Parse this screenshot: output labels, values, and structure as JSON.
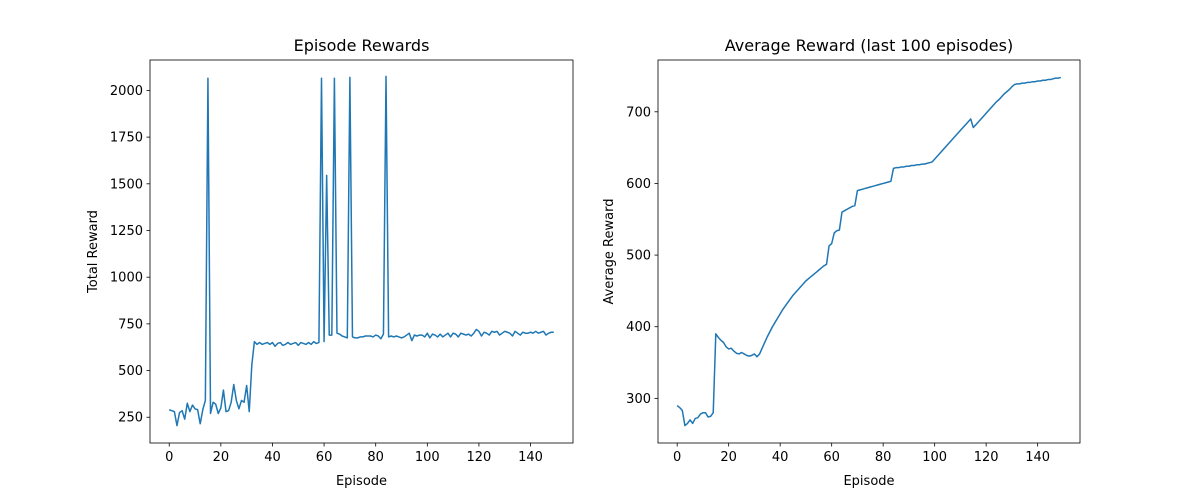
{
  "chart_data": [
    {
      "type": "line",
      "title": "Episode Rewards",
      "x_label": "Episode",
      "y_label": "Total Reward",
      "x": [
        0,
        1,
        2,
        3,
        4,
        5,
        6,
        7,
        8,
        9,
        10,
        11,
        12,
        13,
        14,
        15,
        16,
        17,
        18,
        19,
        20,
        21,
        22,
        23,
        24,
        25,
        26,
        27,
        28,
        29,
        30,
        31,
        32,
        33,
        34,
        35,
        36,
        37,
        38,
        39,
        40,
        41,
        42,
        43,
        44,
        45,
        46,
        47,
        48,
        49,
        50,
        51,
        52,
        53,
        54,
        55,
        56,
        57,
        58,
        59,
        60,
        61,
        62,
        63,
        64,
        65,
        66,
        67,
        68,
        69,
        70,
        71,
        72,
        73,
        74,
        75,
        76,
        77,
        78,
        79,
        80,
        81,
        82,
        83,
        84,
        85,
        86,
        87,
        88,
        89,
        90,
        91,
        92,
        93,
        94,
        95,
        96,
        97,
        98,
        99,
        100,
        101,
        102,
        103,
        104,
        105,
        106,
        107,
        108,
        109,
        110,
        111,
        112,
        113,
        114,
        115,
        116,
        117,
        118,
        119,
        120,
        121,
        122,
        123,
        124,
        125,
        126,
        127,
        128,
        129,
        130,
        131,
        132,
        133,
        134,
        135,
        136,
        137,
        138,
        139,
        140,
        141,
        142,
        143,
        144,
        145,
        146,
        147,
        148,
        149
      ],
      "series": [
        {
          "color": "#1f77b4",
          "values": [
            290,
            285,
            280,
            205,
            275,
            285,
            240,
            325,
            280,
            315,
            295,
            290,
            215,
            290,
            340,
            2065,
            270,
            330,
            320,
            270,
            300,
            395,
            280,
            285,
            330,
            425,
            340,
            295,
            340,
            330,
            420,
            280,
            530,
            655,
            640,
            650,
            640,
            645,
            650,
            640,
            650,
            630,
            645,
            650,
            635,
            640,
            650,
            640,
            645,
            650,
            635,
            650,
            645,
            640,
            650,
            640,
            655,
            645,
            650,
            2065,
            655,
            1545,
            690,
            690,
            2065,
            700,
            695,
            685,
            680,
            675,
            2070,
            680,
            675,
            675,
            680,
            680,
            685,
            685,
            685,
            680,
            690,
            685,
            670,
            695,
            2075,
            680,
            685,
            680,
            685,
            680,
            675,
            680,
            690,
            700,
            660,
            690,
            685,
            690,
            690,
            680,
            700,
            675,
            695,
            690,
            680,
            695,
            680,
            690,
            700,
            680,
            700,
            695,
            680,
            700,
            695,
            690,
            695,
            685,
            700,
            720,
            710,
            685,
            705,
            700,
            690,
            710,
            705,
            710,
            690,
            700,
            710,
            705,
            700,
            685,
            710,
            700,
            690,
            705,
            700,
            700,
            705,
            700,
            710,
            700,
            705,
            710,
            690,
            700,
            705,
            705
          ]
        }
      ],
      "xlim": [
        -7.45,
        156.45
      ],
      "ylim": [
        112,
        2163
      ],
      "xticks": [
        0,
        20,
        40,
        60,
        80,
        100,
        120,
        140
      ],
      "yticks": [
        250,
        500,
        750,
        1000,
        1250,
        1500,
        1750,
        2000
      ]
    },
    {
      "type": "line",
      "title": "Average Reward (last 100 episodes)",
      "x_label": "Episode",
      "y_label": "Average Reward",
      "x": [
        0,
        1,
        2,
        3,
        4,
        5,
        6,
        7,
        8,
        9,
        10,
        11,
        12,
        13,
        14,
        15,
        16,
        17,
        18,
        19,
        20,
        21,
        22,
        23,
        24,
        25,
        26,
        27,
        28,
        29,
        30,
        31,
        32,
        33,
        34,
        35,
        36,
        37,
        38,
        39,
        40,
        41,
        42,
        43,
        44,
        45,
        46,
        47,
        48,
        49,
        50,
        51,
        52,
        53,
        54,
        55,
        56,
        57,
        58,
        59,
        60,
        61,
        62,
        63,
        64,
        65,
        66,
        67,
        68,
        69,
        70,
        71,
        72,
        73,
        74,
        75,
        76,
        77,
        78,
        79,
        80,
        81,
        82,
        83,
        84,
        85,
        86,
        87,
        88,
        89,
        90,
        91,
        92,
        93,
        94,
        95,
        96,
        97,
        98,
        99,
        100,
        101,
        102,
        103,
        104,
        105,
        106,
        107,
        108,
        109,
        110,
        111,
        112,
        113,
        114,
        115,
        116,
        117,
        118,
        119,
        120,
        121,
        122,
        123,
        124,
        125,
        126,
        127,
        128,
        129,
        130,
        131,
        132,
        133,
        134,
        135,
        136,
        137,
        138,
        139,
        140,
        141,
        142,
        143,
        144,
        145,
        146,
        147,
        148,
        149
      ],
      "series": [
        {
          "color": "#1f77b4",
          "values": [
            290,
            287,
            283,
            262,
            265,
            270,
            265,
            272,
            273,
            278,
            280,
            280,
            274,
            275,
            280,
            390,
            385,
            381,
            378,
            372,
            369,
            370,
            366,
            363,
            362,
            364,
            362,
            360,
            359,
            360,
            362,
            358,
            362,
            370,
            378,
            386,
            393,
            400,
            406,
            412,
            418,
            424,
            429,
            434,
            439,
            444,
            448,
            452,
            456,
            460,
            464,
            467,
            470,
            473,
            476,
            479,
            482,
            485,
            487,
            513,
            516,
            531,
            534,
            535,
            560,
            562,
            564,
            566,
            568,
            569,
            590,
            591,
            592,
            593,
            594,
            595,
            596,
            597,
            598,
            599,
            600,
            601,
            602,
            603,
            621,
            622,
            622,
            623,
            623,
            624,
            624,
            625,
            625,
            626,
            626,
            627,
            627,
            628,
            629,
            630,
            634,
            638,
            642,
            646,
            650,
            654,
            658,
            662,
            666,
            670,
            674,
            678,
            682,
            686,
            690,
            678,
            682,
            686,
            690,
            694,
            698,
            702,
            706,
            710,
            714,
            717,
            721,
            725,
            728,
            731,
            735,
            738,
            739,
            739,
            740,
            740,
            741,
            741,
            742,
            742,
            743,
            743,
            744,
            744,
            745,
            745,
            746,
            747,
            747,
            748
          ]
        }
      ],
      "xlim": [
        -7.45,
        156.45
      ],
      "ylim": [
        237.7,
        772.3
      ],
      "xticks": [
        0,
        20,
        40,
        60,
        80,
        100,
        120,
        140
      ],
      "yticks": [
        300,
        400,
        500,
        600,
        700
      ]
    }
  ]
}
